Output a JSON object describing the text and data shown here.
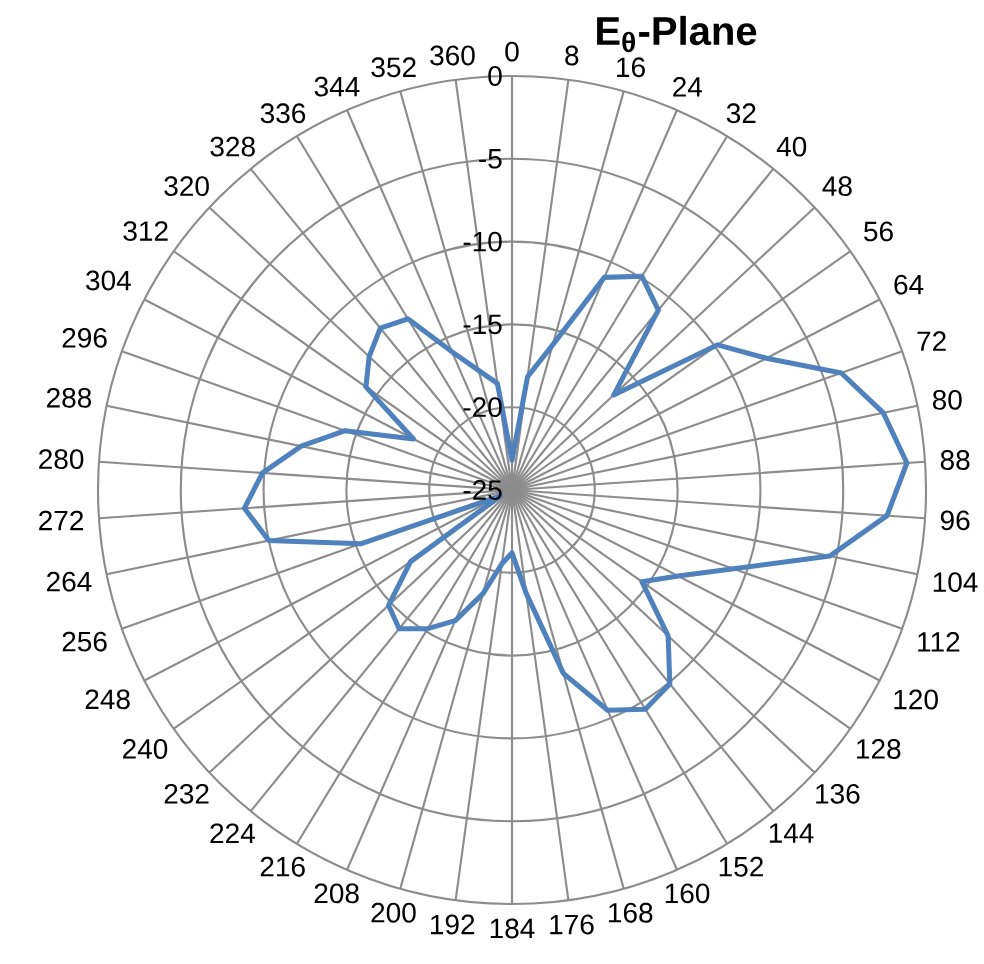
{
  "chart_data": {
    "type": "radar",
    "title": "E$_{θ}$-Plane",
    "categories": [
      "0",
      "8",
      "16",
      "24",
      "32",
      "40",
      "48",
      "56",
      "64",
      "72",
      "80",
      "88",
      "96",
      "104",
      "112",
      "120",
      "128",
      "136",
      "144",
      "152",
      "160",
      "168",
      "176",
      "184",
      "192",
      "200",
      "208",
      "216",
      "224",
      "232",
      "240",
      "248",
      "256",
      "264",
      "272",
      "280",
      "288",
      "296",
      "304",
      "312",
      "320",
      "328",
      "336",
      "344",
      "352",
      "360"
    ],
    "series": [
      {
        "color": "#4f81bd",
        "values": [
          -23.2,
          -18.1,
          -15.9,
          -11.0,
          -9.9,
          -11.0,
          -16.6,
          -9.8,
          -7.7,
          -3.9,
          -2.1,
          -1.1,
          -2.3,
          -5.4,
          -10.8,
          -13.7,
          -15.4,
          -12.1,
          -9.9,
          -9.5,
          -10.5,
          -13.5,
          -18.7,
          -21.2,
          -20.5,
          -18.5,
          -16.4,
          -15.2,
          -14.2,
          -14.8,
          -17.5,
          -24.2,
          -15.3,
          -10.0,
          -8.8,
          -9.9,
          -12.0,
          -14.3,
          -18.3,
          -14.2,
          -13.2,
          -12.4,
          -12.9,
          -15.9,
          -17.5,
          -18.5
        ]
      }
    ],
    "ylim": [
      -25,
      0
    ],
    "yticks": [
      -25,
      -20,
      -15,
      -10,
      -5,
      0
    ],
    "grid": true
  }
}
